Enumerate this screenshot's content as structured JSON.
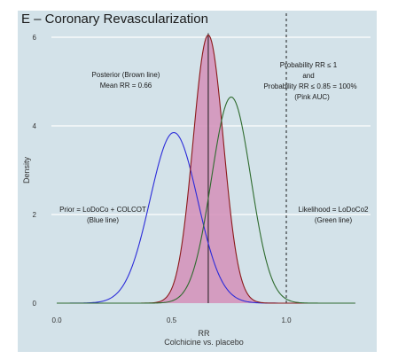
{
  "chart_data": {
    "type": "area",
    "title": "E – Coronary Revascularization",
    "xlabel": "RR",
    "xlabel_sub": "Colchicine vs. placebo",
    "ylabel": "Density",
    "xlim": [
      0.0,
      1.3
    ],
    "ylim": [
      0,
      6
    ],
    "x_ticks": [
      {
        "value": 0.0,
        "label": "0.0"
      },
      {
        "value": 0.5,
        "label": "0.5"
      },
      {
        "value": 1.0,
        "label": "1.0"
      }
    ],
    "y_ticks": [
      {
        "value": 0,
        "label": "0"
      },
      {
        "value": 2,
        "label": "2"
      },
      {
        "value": 4,
        "label": "4"
      },
      {
        "value": 6,
        "label": "6"
      }
    ],
    "grid": "horizontal",
    "series": [
      {
        "key": "prior",
        "color": "#2b2bd9",
        "peak_x": 0.51,
        "peak_density": 3.85
      },
      {
        "key": "posterior",
        "color": "#8b1a1a",
        "fill": "#d38fb8",
        "peak_x": 0.66,
        "peak_density": 6.05
      },
      {
        "key": "likelihood",
        "color": "#2e6b2e",
        "peak_x": 0.76,
        "peak_density": 4.65
      }
    ],
    "reference_lines": [
      {
        "key": "posterior-mean",
        "x": 0.66,
        "style": "solid"
      },
      {
        "key": "null-rr",
        "x": 1.0,
        "style": "dashed"
      }
    ],
    "annotations": {
      "posterior": [
        "Posterior (Brown line)",
        "Mean RR = 0.66"
      ],
      "probability": [
        "Probability RR ≤ 1",
        "and",
        "Probability RR ≤ 0.85 = 100%",
        "(Pink AUC)"
      ],
      "prior": [
        "Prior = LoDoCo + COLCOT",
        "(Blue line)"
      ],
      "likelihood": [
        "Likelihood = LoDoCo2",
        "(Green line)"
      ]
    }
  }
}
